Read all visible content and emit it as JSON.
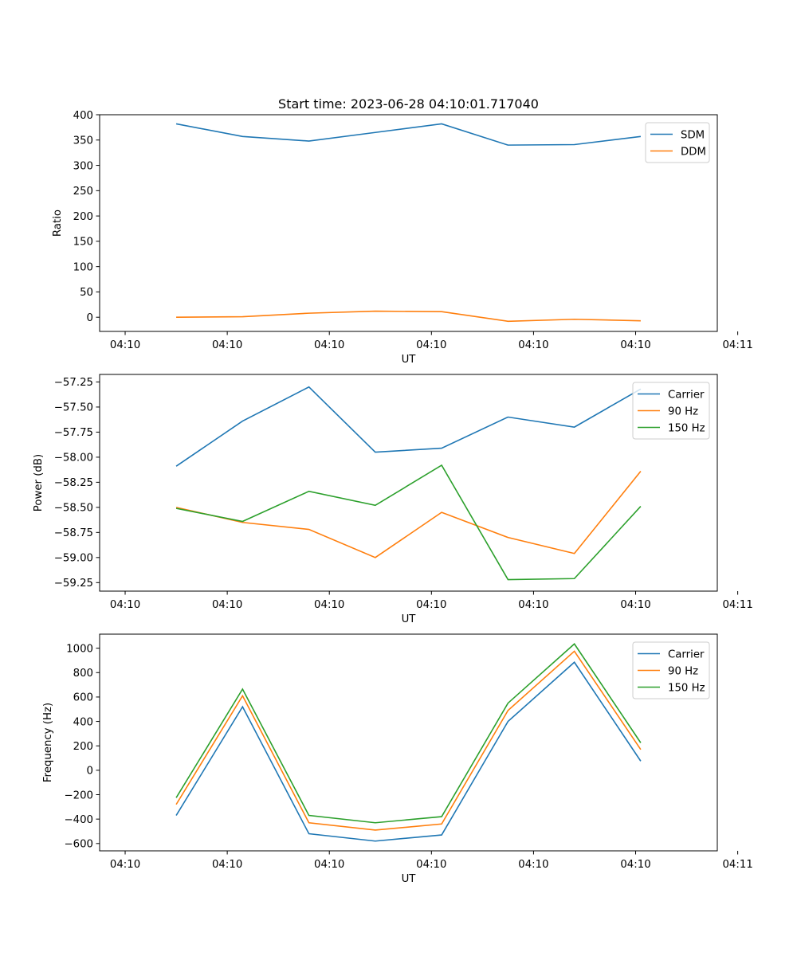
{
  "figure_title": "Start time: 2023-06-28 04:10:01.717040",
  "chart_data": [
    {
      "type": "line",
      "xlabel": "UT",
      "ylabel": "Ratio",
      "ylim": [
        -28,
        400
      ],
      "yticks": [
        0,
        50,
        100,
        150,
        200,
        250,
        300,
        350,
        400
      ],
      "ytick_labels": [
        "0",
        "50",
        "100",
        "150",
        "200",
        "250",
        "300",
        "350",
        "400"
      ],
      "xlim": [
        -0.5,
        11.6
      ],
      "xticks": [
        0,
        2,
        4,
        6,
        8,
        10,
        12
      ],
      "xtick_labels": [
        "04:10",
        "04:10",
        "04:10",
        "04:10",
        "04:10",
        "04:10",
        "04:11"
      ],
      "x": [
        1,
        2.3,
        3.6,
        4.9,
        6.2,
        7.5,
        8.8,
        10.1
      ],
      "legend_position": "upper right",
      "series": [
        {
          "name": "SDM",
          "color": "#1f77b4",
          "values": [
            382,
            357,
            348,
            365,
            382,
            340,
            341,
            357
          ]
        },
        {
          "name": "DDM",
          "color": "#ff7f0e",
          "values": [
            0,
            1,
            8,
            12,
            11,
            -8,
            -4,
            -7
          ]
        }
      ]
    },
    {
      "type": "line",
      "xlabel": "UT",
      "ylabel": "Power (dB)",
      "ylim": [
        -59.335,
        -57.175
      ],
      "yticks": [
        -59.25,
        -59.0,
        -58.75,
        -58.5,
        -58.25,
        -58.0,
        -57.75,
        -57.5,
        -57.25
      ],
      "ytick_labels": [
        "−59.25",
        "−59.00",
        "−58.75",
        "−58.50",
        "−58.25",
        "−58.00",
        "−57.75",
        "−57.50",
        "−57.25"
      ],
      "xlim": [
        -0.5,
        11.6
      ],
      "xticks": [
        0,
        2,
        4,
        6,
        8,
        10,
        12
      ],
      "xtick_labels": [
        "04:10",
        "04:10",
        "04:10",
        "04:10",
        "04:10",
        "04:10",
        "04:11"
      ],
      "x": [
        1,
        2.3,
        3.6,
        4.9,
        6.2,
        7.5,
        8.8,
        10.1
      ],
      "legend_position": "upper right",
      "series": [
        {
          "name": "Carrier",
          "color": "#1f77b4",
          "values": [
            -58.09,
            -57.64,
            -57.3,
            -57.95,
            -57.91,
            -57.6,
            -57.7,
            -57.32
          ]
        },
        {
          "name": "90 Hz",
          "color": "#ff7f0e",
          "values": [
            -58.5,
            -58.65,
            -58.72,
            -59.0,
            -58.55,
            -58.8,
            -58.96,
            -58.14
          ]
        },
        {
          "name": "150 Hz",
          "color": "#2ca02c",
          "values": [
            -58.51,
            -58.64,
            -58.34,
            -58.48,
            -58.08,
            -59.22,
            -59.21,
            -58.49
          ]
        }
      ]
    },
    {
      "type": "line",
      "xlabel": "UT",
      "ylabel": "Frequency (Hz)",
      "ylim": [
        -660,
        1115
      ],
      "yticks": [
        -600,
        -400,
        -200,
        0,
        200,
        400,
        600,
        800,
        1000
      ],
      "ytick_labels": [
        "−600",
        "−400",
        "−200",
        "0",
        "200",
        "400",
        "600",
        "800",
        "1000"
      ],
      "xlim": [
        -0.5,
        11.6
      ],
      "xticks": [
        0,
        2,
        4,
        6,
        8,
        10,
        12
      ],
      "xtick_labels": [
        "04:10",
        "04:10",
        "04:10",
        "04:10",
        "04:10",
        "04:10",
        "04:11"
      ],
      "x": [
        1,
        2.3,
        3.6,
        4.9,
        6.2,
        7.5,
        8.8,
        10.1
      ],
      "legend_position": "upper right",
      "series": [
        {
          "name": "Carrier",
          "color": "#1f77b4",
          "values": [
            -370,
            520,
            -520,
            -580,
            -530,
            400,
            885,
            75
          ]
        },
        {
          "name": "90 Hz",
          "color": "#ff7f0e",
          "values": [
            -280,
            610,
            -430,
            -490,
            -440,
            490,
            975,
            170
          ]
        },
        {
          "name": "150 Hz",
          "color": "#2ca02c",
          "values": [
            -225,
            665,
            -370,
            -430,
            -380,
            550,
            1035,
            225
          ]
        }
      ]
    }
  ]
}
